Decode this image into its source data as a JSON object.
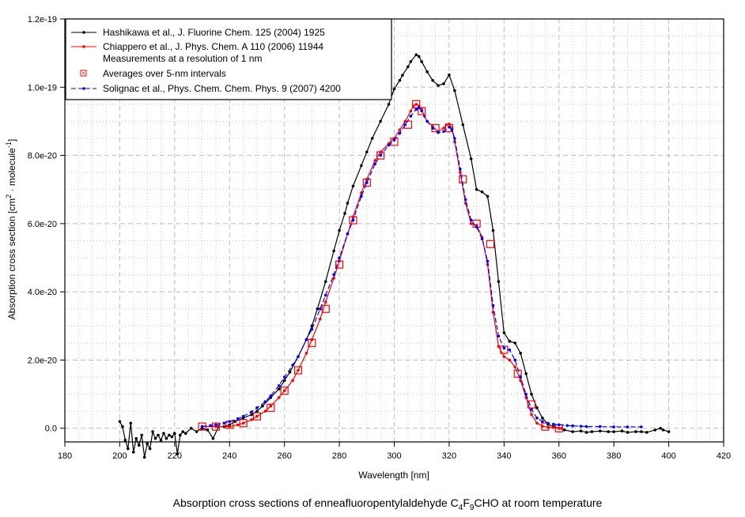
{
  "chart_data": {
    "type": "line",
    "title": "",
    "caption": {
      "prefix": "Absorption cross sections of enneafluoropentylaldehyde C",
      "sub1": "4",
      "mid": "F",
      "sub2": "9",
      "suffix": "CHO at room temperature"
    },
    "xlabel": "Wavelength [nm]",
    "ylabel": {
      "prefix": "Absorption cross section [cm",
      "sup1": "2",
      "mid": " · molecule",
      "sup2": "-1",
      "suffix": "]"
    },
    "xlim": [
      180,
      420
    ],
    "ylim": [
      -4e-21,
      1.2e-19
    ],
    "x_ticks": [
      180,
      200,
      220,
      240,
      260,
      280,
      300,
      320,
      340,
      360,
      380,
      400,
      420
    ],
    "x_tick_labels": [
      "180",
      "200",
      "220",
      "240",
      "260",
      "280",
      "300",
      "320",
      "340",
      "360",
      "380",
      "400",
      "420"
    ],
    "y_ticks": [
      0,
      2e-20,
      4e-20,
      6e-20,
      8e-20,
      1e-19,
      1.2e-19
    ],
    "y_tick_labels": [
      "0.0",
      "2.0e-20",
      "4.0e-20",
      "6.0e-20",
      "8.0e-20",
      "1.0e-19",
      "1.2e-19"
    ],
    "grid": true,
    "legend_position": "top-left",
    "y_unit_scale": 1e-20,
    "series": [
      {
        "name": "Hashikawa et al., J. Fluorine Chem. 125 (2004) 1925",
        "color": "#000000",
        "style": "solid-dot",
        "x": [
          200,
          201,
          202,
          203,
          204,
          205,
          206,
          207,
          208,
          209,
          210,
          211,
          212,
          213,
          214,
          215,
          216,
          217,
          218,
          219,
          220,
          221,
          222,
          223,
          224,
          226,
          228,
          230,
          232,
          234,
          236,
          238,
          240,
          242,
          245,
          248,
          250,
          252,
          255,
          258,
          260,
          262,
          265,
          268,
          270,
          272,
          275,
          278,
          280,
          282,
          283,
          285,
          288,
          290,
          292,
          295,
          298,
          300,
          302,
          303,
          305,
          306,
          308,
          309,
          310,
          312,
          314,
          316,
          318,
          320,
          322,
          325,
          328,
          330,
          332,
          334,
          336,
          338,
          340,
          342,
          344,
          346,
          348,
          350,
          352,
          354,
          356,
          358,
          360,
          362,
          365,
          368,
          370,
          372,
          375,
          378,
          380,
          383,
          385,
          388,
          390,
          392,
          395,
          397,
          398,
          400
        ],
        "values": [
          0.2,
          0.05,
          -0.35,
          -0.6,
          0.15,
          -0.7,
          -0.3,
          -0.5,
          -0.2,
          -0.85,
          -0.45,
          -0.6,
          -0.1,
          -0.3,
          -0.2,
          -0.35,
          -0.15,
          -0.3,
          -0.2,
          -0.25,
          -0.15,
          -0.75,
          -0.2,
          -0.1,
          -0.15,
          0.0,
          -0.1,
          0.0,
          -0.05,
          -0.3,
          0.05,
          0.05,
          0.1,
          0.2,
          0.3,
          0.4,
          0.5,
          0.65,
          0.9,
          1.15,
          1.4,
          1.65,
          2.1,
          2.6,
          3.0,
          3.5,
          4.3,
          5.2,
          5.8,
          6.3,
          6.6,
          7.1,
          7.7,
          8.1,
          8.5,
          9.0,
          9.5,
          9.95,
          10.2,
          10.35,
          10.6,
          10.75,
          10.95,
          10.9,
          10.75,
          10.45,
          10.2,
          10.05,
          10.1,
          10.36,
          9.9,
          8.9,
          7.9,
          7.0,
          6.93,
          6.8,
          5.8,
          4.3,
          2.8,
          2.55,
          2.5,
          2.2,
          1.6,
          1.0,
          0.6,
          0.3,
          0.12,
          0.05,
          0.0,
          -0.05,
          -0.1,
          -0.08,
          -0.12,
          -0.1,
          -0.08,
          -0.1,
          -0.1,
          -0.08,
          -0.12,
          -0.1,
          -0.1,
          -0.12,
          -0.05,
          0.0,
          -0.05,
          -0.1
        ]
      },
      {
        "name": "Chiappero et al., J. Phys. Chem. A 110 (2006) 11944",
        "name_line2": "Measurements at a resolution of 1 nm",
        "color": "#ff0000",
        "style": "solid-dot",
        "x": [
          230,
          235,
          240,
          243,
          245,
          248,
          250,
          253,
          255,
          258,
          260,
          263,
          265,
          268,
          270,
          273,
          275,
          278,
          280,
          283,
          285,
          288,
          290,
          293,
          295,
          298,
          300,
          302,
          304,
          306,
          307,
          308,
          309,
          310,
          311,
          312,
          314,
          316,
          318,
          319,
          320,
          321,
          322,
          324,
          326,
          328,
          330,
          332,
          334,
          336,
          338,
          340,
          342,
          344,
          346,
          348,
          350,
          352,
          354,
          356,
          358,
          360,
          361
        ],
        "values": [
          0.05,
          0.05,
          0.05,
          0.1,
          0.15,
          0.25,
          0.35,
          0.5,
          0.65,
          0.9,
          1.1,
          1.4,
          1.7,
          2.2,
          2.6,
          3.2,
          3.7,
          4.4,
          4.9,
          5.7,
          6.2,
          6.9,
          7.3,
          7.85,
          8.1,
          8.35,
          8.5,
          8.75,
          9.0,
          9.3,
          9.45,
          9.5,
          9.45,
          9.35,
          9.15,
          9.0,
          8.85,
          8.7,
          8.8,
          8.9,
          8.92,
          8.8,
          8.4,
          7.5,
          6.6,
          6.0,
          5.95,
          5.6,
          4.8,
          3.4,
          2.4,
          2.1,
          2.0,
          1.8,
          1.4,
          0.9,
          0.4,
          0.15,
          0.06,
          0.03,
          0.02,
          0.0,
          0.0
        ]
      },
      {
        "name": "Averages over 5-nm intervals",
        "color": "#ff0000",
        "style": "open-square",
        "x": [
          230,
          235,
          240,
          245,
          250,
          255,
          260,
          265,
          270,
          275,
          280,
          285,
          290,
          295,
          300,
          305,
          308,
          310,
          315,
          320,
          325,
          330,
          335,
          340,
          345,
          350,
          355,
          360
        ],
        "values": [
          0.05,
          0.05,
          0.1,
          0.15,
          0.35,
          0.6,
          1.1,
          1.7,
          2.5,
          3.5,
          4.8,
          6.1,
          7.2,
          8.0,
          8.4,
          8.9,
          9.5,
          9.3,
          8.8,
          8.8,
          7.3,
          6.0,
          5.4,
          2.3,
          1.6,
          0.7,
          0.05,
          0.0
        ]
      },
      {
        "name": "Solignac et al., Phys. Chem. Chem. Phys. 9 (2007) 4200",
        "color": "#0000ff",
        "style": "dashed-dot",
        "x": [
          230,
          233,
          235,
          238,
          240,
          243,
          245,
          248,
          250,
          253,
          255,
          258,
          260,
          263,
          265,
          268,
          270,
          273,
          275,
          278,
          280,
          283,
          285,
          288,
          290,
          293,
          295,
          298,
          300,
          302,
          304,
          306,
          308,
          309,
          310,
          312,
          314,
          316,
          318,
          320,
          321,
          322,
          324,
          326,
          328,
          330,
          332,
          334,
          336,
          338,
          340,
          342,
          344,
          346,
          348,
          350,
          352,
          354,
          356,
          358,
          360,
          363,
          365,
          368,
          370,
          375,
          380,
          385,
          390
        ],
        "values": [
          0.05,
          0.08,
          0.1,
          0.15,
          0.2,
          0.28,
          0.35,
          0.48,
          0.6,
          0.78,
          0.95,
          1.25,
          1.5,
          1.85,
          2.1,
          2.6,
          2.9,
          3.5,
          3.9,
          4.5,
          5.0,
          5.7,
          6.1,
          6.8,
          7.2,
          7.75,
          8.0,
          8.3,
          8.45,
          8.65,
          8.9,
          9.15,
          9.35,
          9.4,
          9.3,
          9.0,
          8.8,
          8.67,
          8.7,
          8.83,
          8.75,
          8.5,
          7.6,
          6.7,
          6.1,
          5.9,
          5.55,
          4.9,
          3.6,
          2.7,
          2.35,
          2.3,
          2.0,
          1.5,
          1.0,
          0.55,
          0.3,
          0.2,
          0.15,
          0.12,
          0.1,
          0.08,
          0.07,
          0.06,
          0.05,
          0.05,
          0.04,
          0.04,
          0.04
        ]
      }
    ]
  }
}
